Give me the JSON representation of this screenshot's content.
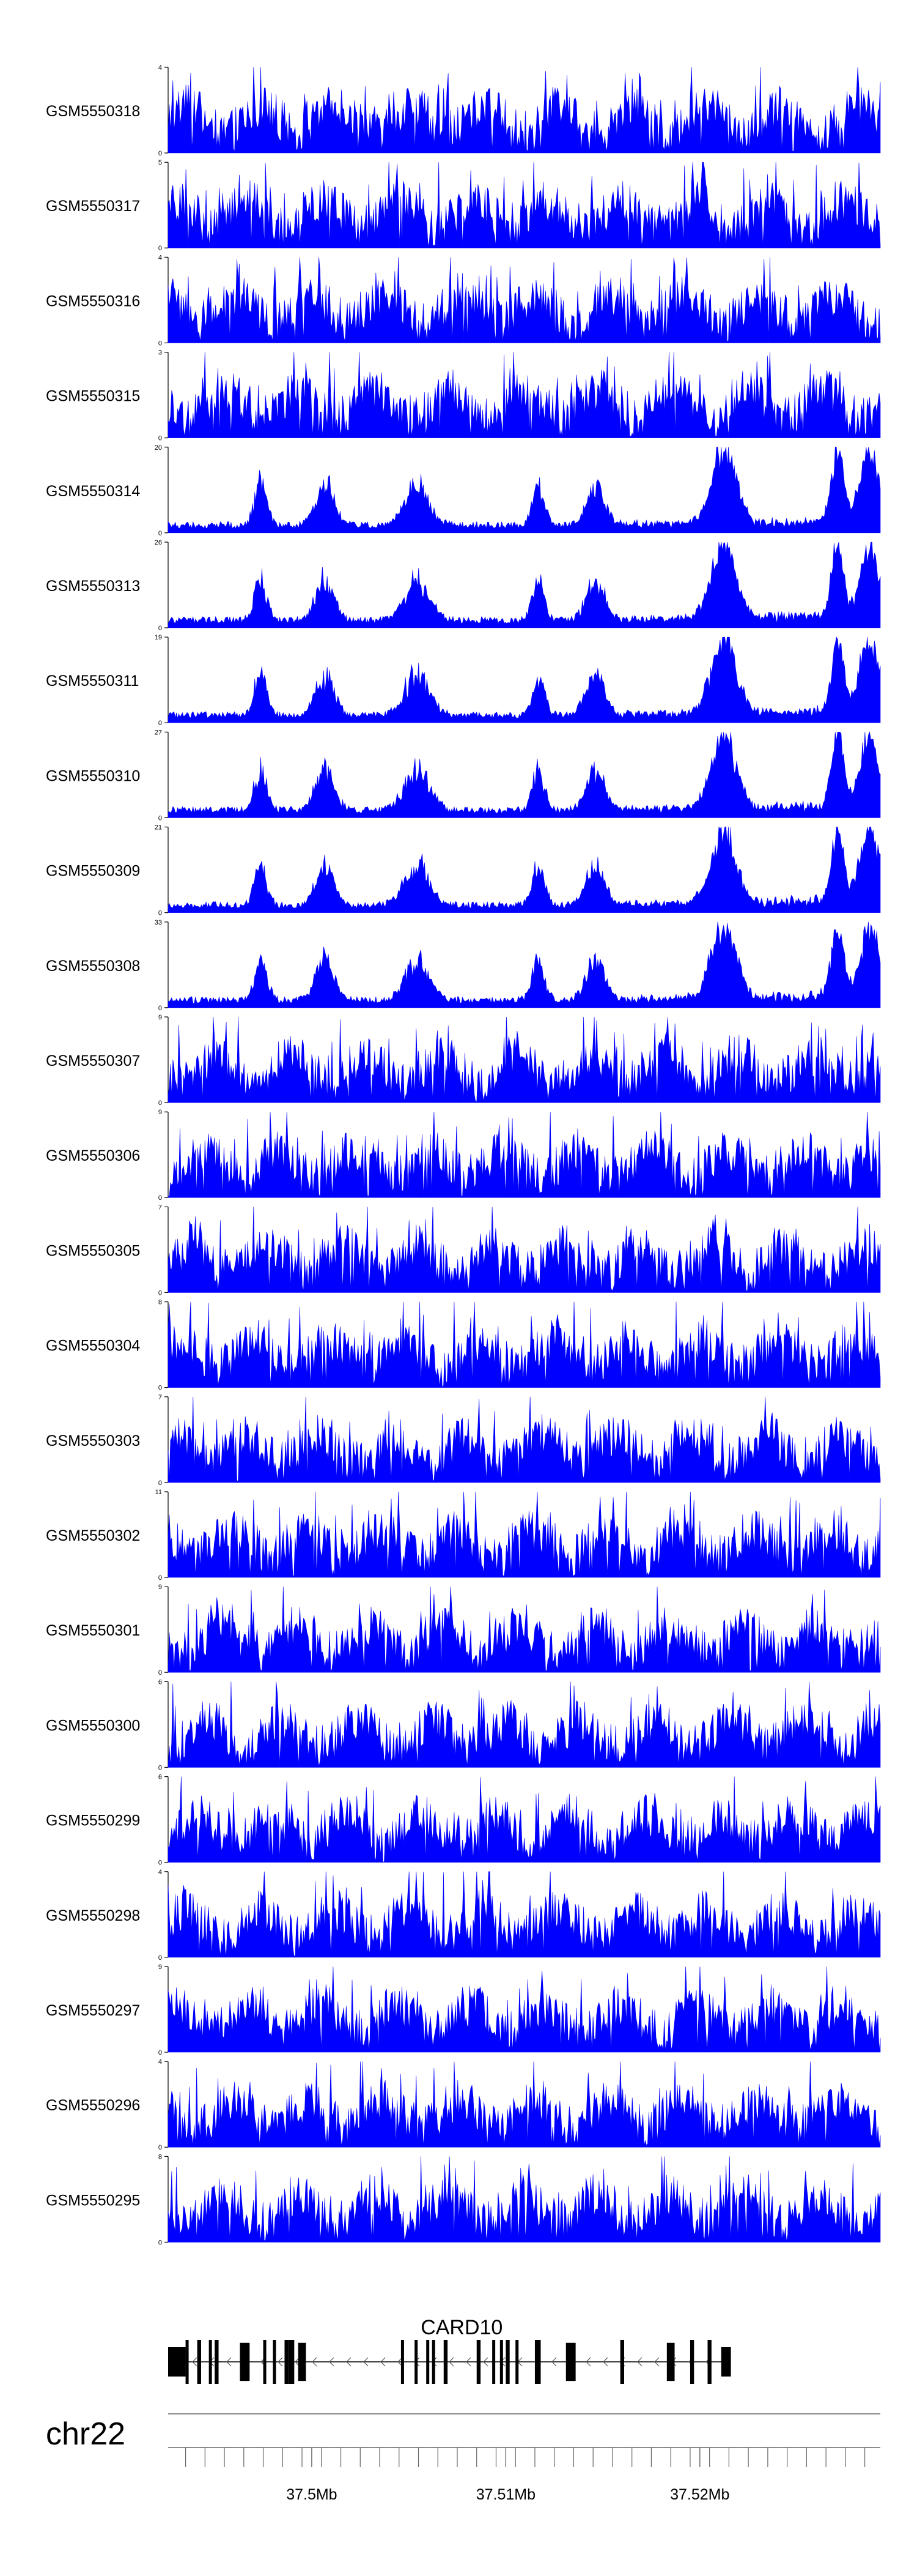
{
  "chart_data": {
    "type": "area",
    "color": "#0000ff",
    "tracks": [
      {
        "name": "GSM5550318",
        "ymax": 4
      },
      {
        "name": "GSM5550317",
        "ymax": 5
      },
      {
        "name": "GSM5550316",
        "ymax": 4
      },
      {
        "name": "GSM5550315",
        "ymax": 3
      },
      {
        "name": "GSM5550314",
        "ymax": 20
      },
      {
        "name": "GSM5550313",
        "ymax": 26
      },
      {
        "name": "GSM5550311",
        "ymax": 19
      },
      {
        "name": "GSM5550310",
        "ymax": 27
      },
      {
        "name": "GSM5550309",
        "ymax": 21
      },
      {
        "name": "GSM5550308",
        "ymax": 33
      },
      {
        "name": "GSM5550307",
        "ymax": 9
      },
      {
        "name": "GSM5550306",
        "ymax": 9
      },
      {
        "name": "GSM5550305",
        "ymax": 7
      },
      {
        "name": "GSM5550304",
        "ymax": 8
      },
      {
        "name": "GSM5550303",
        "ymax": 7
      },
      {
        "name": "GSM5550302",
        "ymax": 11
      },
      {
        "name": "GSM5550301",
        "ymax": 9
      },
      {
        "name": "GSM5550300",
        "ymax": 6
      },
      {
        "name": "GSM5550299",
        "ymax": 6
      },
      {
        "name": "GSM5550298",
        "ymax": 4
      },
      {
        "name": "GSM5550297",
        "ymax": 9
      },
      {
        "name": "GSM5550296",
        "ymax": 4
      },
      {
        "name": "GSM5550295",
        "ymax": 8
      }
    ],
    "ymin": 0,
    "xlim": [
      37.4926,
      37.5293
    ],
    "gene": {
      "name": "CARD10",
      "start": 37.4926,
      "end": 37.5216,
      "strand": "-",
      "exons": [
        [
          37.4926,
          37.4935
        ],
        [
          37.4935,
          37.4936
        ],
        [
          37.4941,
          37.4943
        ],
        [
          37.4947,
          37.4948
        ],
        [
          37.495,
          37.4952
        ],
        [
          37.4963,
          37.4968
        ],
        [
          37.4975,
          37.4976
        ],
        [
          37.498,
          37.4981
        ],
        [
          37.4986,
          37.4988
        ],
        [
          37.4988,
          37.4991
        ],
        [
          37.4993,
          37.4997
        ],
        [
          37.5046,
          37.5047
        ],
        [
          37.5053,
          37.5054
        ],
        [
          37.5059,
          37.506
        ],
        [
          37.5062,
          37.5063
        ],
        [
          37.5068,
          37.507
        ],
        [
          37.5085,
          37.5087
        ],
        [
          37.5093,
          37.5094
        ],
        [
          37.5097,
          37.5098
        ],
        [
          37.51,
          37.5102
        ],
        [
          37.5105,
          37.5106
        ],
        [
          37.5115,
          37.5118
        ],
        [
          37.5131,
          37.5136
        ],
        [
          37.5159,
          37.5161
        ],
        [
          37.5183,
          37.5187
        ],
        [
          37.5195,
          37.5197
        ],
        [
          37.5204,
          37.5206
        ],
        [
          37.5211,
          37.5216
        ]
      ]
    },
    "chromosome": "chr22",
    "x_ticks": [
      37.4935,
      37.4945,
      37.4955,
      37.4965,
      37.4975,
      37.4985,
      37.4995,
      37.5005,
      37.5015,
      37.5025,
      37.5035,
      37.5045,
      37.5055,
      37.5065,
      37.5075,
      37.5085,
      37.5095,
      37.5105,
      37.5115,
      37.5125,
      37.5135,
      37.5145,
      37.5155,
      37.5165,
      37.5175,
      37.5185,
      37.5195,
      37.5205,
      37.5215,
      37.5225,
      37.5235,
      37.5245,
      37.5255,
      37.5265,
      37.5275,
      37.5285
    ],
    "major_ticks": [
      {
        "value": 37.5,
        "label": "37.5Mb"
      },
      {
        "value": 37.51,
        "label": "37.51Mb"
      },
      {
        "value": 37.52,
        "label": "37.52Mb"
      }
    ]
  }
}
